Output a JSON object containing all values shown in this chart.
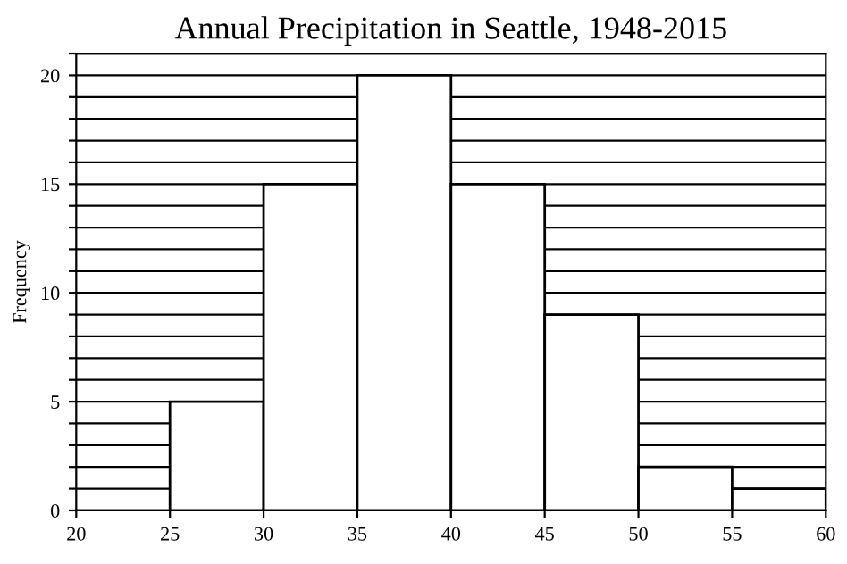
{
  "chart_data": {
    "type": "histogram",
    "title": "Annual Precipitation in Seattle, 1948-2015",
    "ylabel": "Frequency",
    "bins": [
      25,
      30,
      35,
      40,
      45,
      50,
      55,
      60
    ],
    "values": [
      5,
      15,
      20,
      15,
      9,
      2,
      1
    ],
    "color": "#ffffff",
    "xlim": [
      20,
      60
    ],
    "xticks": [
      20,
      25,
      30,
      35,
      40,
      45,
      50,
      55,
      60
    ],
    "ylim": [
      0,
      21
    ],
    "yticks": [
      0,
      {
        "value": 1,
        "label": null
      },
      {
        "value": 2,
        "label": null
      },
      {
        "value": 3,
        "label": null
      },
      {
        "value": 4,
        "label": null
      },
      5,
      {
        "value": 6,
        "label": null
      },
      {
        "value": 7,
        "label": null
      },
      {
        "value": 8,
        "label": null
      },
      {
        "value": 9,
        "label": null
      },
      10,
      {
        "value": 11,
        "label": null
      },
      {
        "value": 12,
        "label": null
      },
      {
        "value": 13,
        "label": null
      },
      {
        "value": 14,
        "label": null
      },
      15,
      {
        "value": 16,
        "label": null
      },
      {
        "value": 17,
        "label": null
      },
      {
        "value": 18,
        "label": null
      },
      {
        "value": 19,
        "label": null
      },
      20,
      {
        "value": 21,
        "label": null
      }
    ],
    "grid": "y"
  }
}
